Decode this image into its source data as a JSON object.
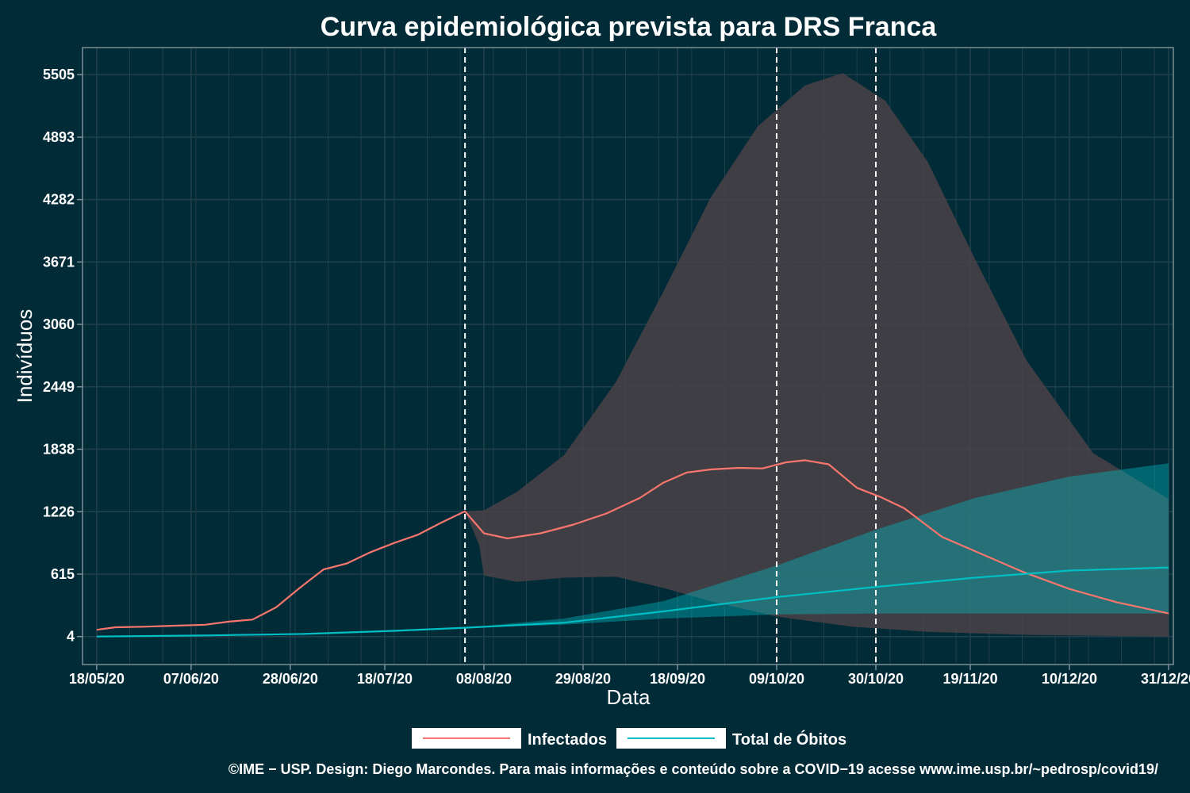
{
  "chart_data": {
    "type": "line",
    "title": "Curva epidemiológica prevista para DRS Franca",
    "xlabel": "Data",
    "ylabel": "Indivíduos",
    "x_ticks": [
      "18/05/20",
      "07/06/20",
      "28/06/20",
      "18/07/20",
      "08/08/20",
      "29/08/20",
      "18/09/20",
      "09/10/20",
      "30/10/20",
      "19/11/20",
      "10/12/20",
      "31/12/20"
    ],
    "y_ticks": [
      4,
      615,
      1226,
      1838,
      2449,
      3060,
      3671,
      4282,
      4893,
      5505
    ],
    "ylim": [
      -270,
      5770
    ],
    "xlim": [
      "2020-05-15",
      "2021-01-01"
    ],
    "vertical_lines": [
      "2020-08-04",
      "2020-10-09",
      "2020-10-30"
    ],
    "grid": true,
    "legend_position": "bottom",
    "series": [
      {
        "name": "Infectados",
        "color": "#f8766d",
        "points": [
          [
            "2020-05-18",
            70
          ],
          [
            "2020-05-22",
            95
          ],
          [
            "2020-05-28",
            100
          ],
          [
            "2020-06-03",
            110
          ],
          [
            "2020-06-10",
            120
          ],
          [
            "2020-06-15",
            150
          ],
          [
            "2020-06-20",
            170
          ],
          [
            "2020-06-25",
            290
          ],
          [
            "2020-06-30",
            480
          ],
          [
            "2020-07-05",
            660
          ],
          [
            "2020-07-10",
            720
          ],
          [
            "2020-07-15",
            830
          ],
          [
            "2020-07-20",
            920
          ],
          [
            "2020-07-25",
            1000
          ],
          [
            "2020-07-30",
            1120
          ],
          [
            "2020-08-04",
            1230
          ],
          [
            "2020-08-08",
            1015
          ],
          [
            "2020-08-13",
            965
          ],
          [
            "2020-08-20",
            1015
          ],
          [
            "2020-08-27",
            1100
          ],
          [
            "2020-09-03",
            1210
          ],
          [
            "2020-09-10",
            1360
          ],
          [
            "2020-09-15",
            1510
          ],
          [
            "2020-09-20",
            1610
          ],
          [
            "2020-09-25",
            1640
          ],
          [
            "2020-10-01",
            1655
          ],
          [
            "2020-10-06",
            1650
          ],
          [
            "2020-10-11",
            1710
          ],
          [
            "2020-10-15",
            1730
          ],
          [
            "2020-10-20",
            1690
          ],
          [
            "2020-10-26",
            1460
          ],
          [
            "2020-10-31",
            1370
          ],
          [
            "2020-11-05",
            1260
          ],
          [
            "2020-11-13",
            980
          ],
          [
            "2020-11-20",
            840
          ],
          [
            "2020-11-30",
            640
          ],
          [
            "2020-12-10",
            470
          ],
          [
            "2020-12-20",
            340
          ],
          [
            "2020-12-31",
            230
          ]
        ]
      },
      {
        "name": "Total de Óbitos",
        "color": "#00bfc4",
        "points": [
          [
            "2020-05-18",
            4
          ],
          [
            "2020-06-10",
            15
          ],
          [
            "2020-07-01",
            30
          ],
          [
            "2020-07-20",
            60
          ],
          [
            "2020-08-04",
            90
          ],
          [
            "2020-08-25",
            140
          ],
          [
            "2020-09-15",
            250
          ],
          [
            "2020-10-09",
            390
          ],
          [
            "2020-10-30",
            490
          ],
          [
            "2020-11-20",
            580
          ],
          [
            "2020-12-10",
            650
          ],
          [
            "2020-12-31",
            680
          ]
        ]
      }
    ],
    "bands": [
      {
        "name": "Infectados",
        "color": "#4a4248",
        "upper": [
          [
            "2020-08-04",
            1230
          ],
          [
            "2020-08-08",
            1240
          ],
          [
            "2020-08-15",
            1420
          ],
          [
            "2020-08-25",
            1780
          ],
          [
            "2020-09-05",
            2500
          ],
          [
            "2020-09-15",
            3380
          ],
          [
            "2020-09-25",
            4300
          ],
          [
            "2020-10-05",
            5000
          ],
          [
            "2020-10-15",
            5400
          ],
          [
            "2020-10-23",
            5520
          ],
          [
            "2020-11-01",
            5250
          ],
          [
            "2020-11-10",
            4650
          ],
          [
            "2020-11-20",
            3700
          ],
          [
            "2020-12-01",
            2700
          ],
          [
            "2020-12-15",
            1800
          ],
          [
            "2020-12-31",
            1350
          ]
        ],
        "lower": [
          [
            "2020-08-04",
            1230
          ],
          [
            "2020-08-07",
            900
          ],
          [
            "2020-08-08",
            600
          ],
          [
            "2020-08-15",
            540
          ],
          [
            "2020-08-25",
            580
          ],
          [
            "2020-09-05",
            590
          ],
          [
            "2020-09-15",
            480
          ],
          [
            "2020-09-25",
            350
          ],
          [
            "2020-10-09",
            200
          ],
          [
            "2020-10-25",
            100
          ],
          [
            "2020-11-10",
            50
          ],
          [
            "2020-12-01",
            20
          ],
          [
            "2020-12-31",
            4
          ]
        ]
      },
      {
        "name": "Total de Óbitos",
        "color": "#00bfc4",
        "upper": [
          [
            "2020-08-04",
            90
          ],
          [
            "2020-08-25",
            180
          ],
          [
            "2020-09-15",
            350
          ],
          [
            "2020-10-09",
            700
          ],
          [
            "2020-10-30",
            1050
          ],
          [
            "2020-11-20",
            1360
          ],
          [
            "2020-12-10",
            1570
          ],
          [
            "2020-12-31",
            1700
          ]
        ],
        "lower": [
          [
            "2020-08-04",
            90
          ],
          [
            "2020-08-25",
            120
          ],
          [
            "2020-09-15",
            180
          ],
          [
            "2020-10-09",
            220
          ],
          [
            "2020-10-30",
            230
          ],
          [
            "2020-12-31",
            230
          ]
        ]
      }
    ]
  },
  "legend": {
    "items": [
      {
        "label": "Infectados",
        "color": "#f8766d"
      },
      {
        "label": "Total de Óbitos",
        "color": "#00bfc4"
      }
    ]
  },
  "caption": "©IME − USP. Design: Diego Marcondes. Para mais informações e conteúdo sobre a COVID−19 acesse www.ime.usp.br/~pedrosp/covid19/",
  "colors": {
    "background": "#022b38",
    "grid": "#21404b",
    "panel_border": "#7a8f96",
    "ref_line": "#ffffff"
  }
}
